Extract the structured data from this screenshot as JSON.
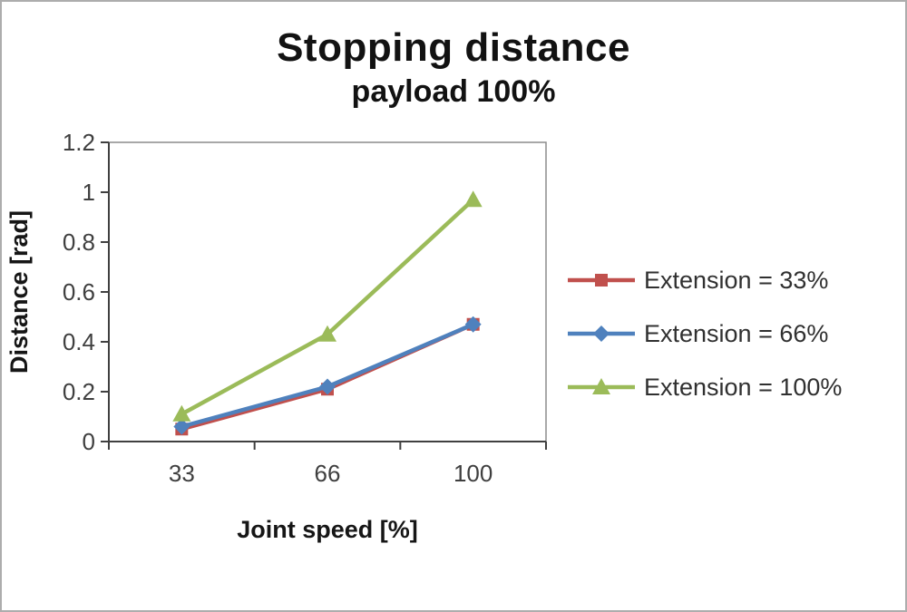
{
  "chart_data": {
    "type": "line",
    "title": "Stopping distance",
    "subtitle": "payload 100%",
    "xlabel": "Joint speed [%]",
    "ylabel": "Distance [rad]",
    "categories": [
      "33",
      "66",
      "100"
    ],
    "ylim": [
      0,
      1.2
    ],
    "ytick_step": 0.2,
    "yticks": [
      "0",
      "0.2",
      "0.4",
      "0.6",
      "0.8",
      "1",
      "1.2"
    ],
    "grid": false,
    "legend_position": "right",
    "series": [
      {
        "name": "Extension = 33%",
        "color": "#c0504d",
        "marker": "square",
        "values": [
          0.05,
          0.21,
          0.47
        ]
      },
      {
        "name": "Extension = 66%",
        "color": "#4f81bd",
        "marker": "diamond",
        "values": [
          0.06,
          0.22,
          0.47
        ]
      },
      {
        "name": "Extension = 100%",
        "color": "#9bbb59",
        "marker": "triangle",
        "values": [
          0.11,
          0.43,
          0.97
        ]
      }
    ]
  },
  "colors": {
    "axis": "#404040",
    "plot_border": "#8c8c8c",
    "page_border": "#adadad"
  }
}
